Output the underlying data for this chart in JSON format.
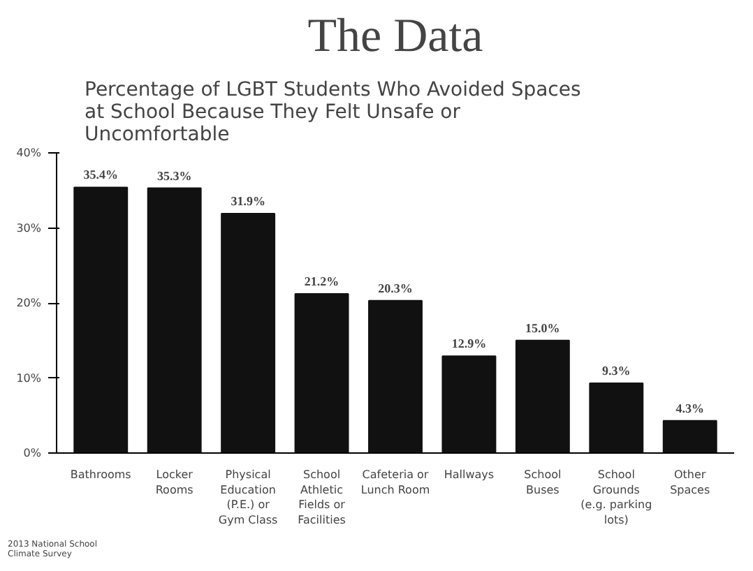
{
  "chart_data": {
    "type": "bar",
    "title": "The Data",
    "subtitle": "Percentage of LGBT Students Who Avoided Spaces\nat School Because They Felt Unsafe or\nUncomfortable",
    "categories": [
      "Bathrooms",
      "Locker\nRooms",
      "Physical\nEducation\n(P.E.) or\nGym Class",
      "School\nAthletic\nFields or\nFacilities",
      "Cafeteria or\nLunch Room",
      "Hallways",
      "School\nBuses",
      "School\nGrounds\n(e.g. parking\nlots)",
      "Other\nSpaces"
    ],
    "values": [
      35.4,
      35.3,
      31.9,
      21.2,
      20.3,
      12.9,
      15.0,
      9.3,
      4.3
    ],
    "value_labels": [
      "35.4%",
      "35.3%",
      "31.9%",
      "21.2%",
      "20.3%",
      "12.9%",
      "15.0%",
      "9.3%",
      "4.3%"
    ],
    "color": "#111111",
    "ylim": [
      0,
      40
    ],
    "yticks": [
      {
        "value": 0,
        "label": "0%"
      },
      {
        "value": 10,
        "label": "10%"
      },
      {
        "value": 20,
        "label": "20%"
      },
      {
        "value": 30,
        "label": "30%"
      },
      {
        "value": 40,
        "label": "40%"
      }
    ],
    "grid": false,
    "annotations": [
      "2013 National School\nClimate Survey"
    ]
  }
}
